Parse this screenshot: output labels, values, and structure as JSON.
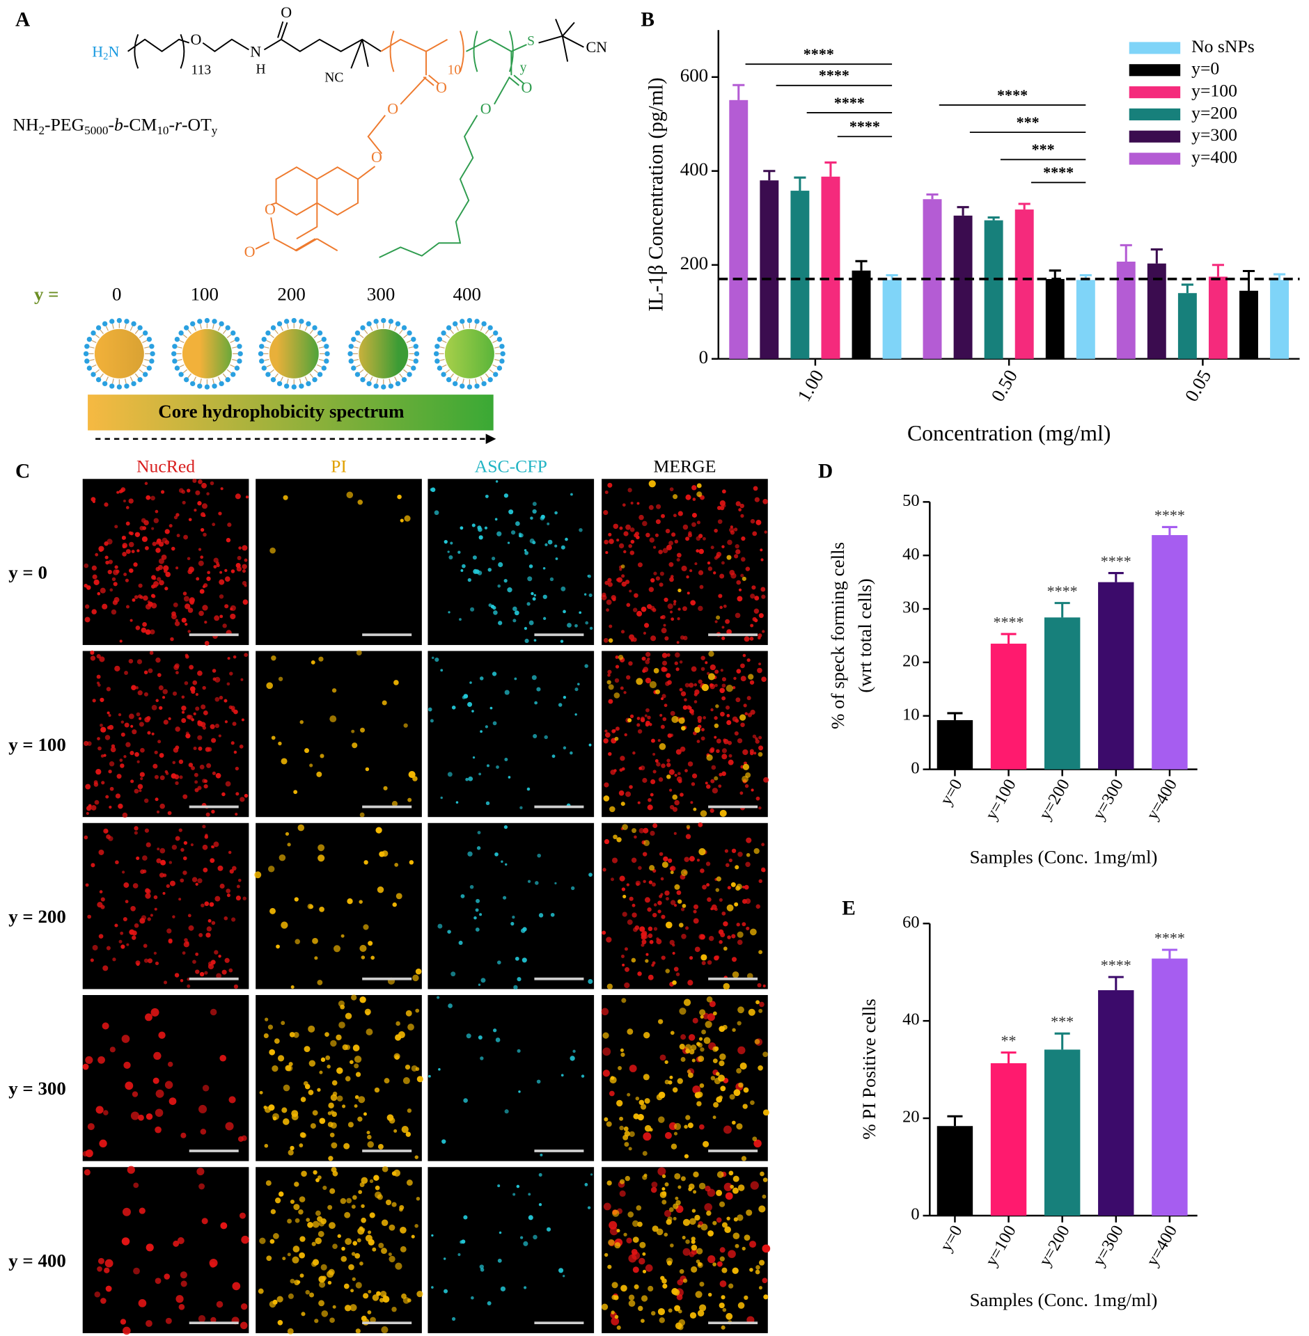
{
  "panel_labels": [
    "A",
    "B",
    "C",
    "D",
    "E"
  ],
  "panel_a": {
    "amine": [
      "H",
      "2",
      "N"
    ],
    "atoms": [
      "113",
      "O",
      "N",
      "H",
      "O",
      "NC",
      "10",
      "y",
      "S",
      "CN",
      "O",
      "O",
      "O",
      "O",
      "O",
      "O",
      "O"
    ],
    "formula": [
      "NH",
      "2",
      "-PEG",
      "5000",
      "-",
      "b",
      "-CM",
      "10",
      "-",
      "r",
      "-OT",
      "y"
    ],
    "y_label": "y =",
    "y_values": [
      "0",
      "100",
      "200",
      "300",
      "400"
    ],
    "spectrum": "Core hydrophobicity spectrum"
  },
  "panel_c": {
    "columns": [
      "NucRed",
      "PI",
      "ASC-CFP",
      "MERGE"
    ],
    "rows": [
      "y = 0",
      "y = 100",
      "y = 200",
      "y = 300",
      "y = 400"
    ]
  },
  "chart_data": [
    {
      "type": "grouped-bar",
      "categories": [
        "1.00",
        "0.50",
        "0.05"
      ],
      "xlabel": "Concentration (mg/ml)",
      "ylabel": "IL-1β Concentration (pg/ml)",
      "ylim": [
        0,
        700
      ],
      "yticks": [
        0,
        200,
        400,
        600
      ],
      "reference_line": 170,
      "legend": "top-right",
      "series": [
        {
          "name": "No sNPs",
          "color": "#7fd4f8",
          "values": [
            168,
            168,
            168
          ],
          "errors": [
            10,
            10,
            12
          ]
        },
        {
          "name": "y=0",
          "color": "#000000",
          "values": [
            188,
            170,
            145
          ],
          "errors": [
            20,
            18,
            42
          ]
        },
        {
          "name": "y=100",
          "color": "#f52a7c",
          "values": [
            388,
            318,
            175
          ],
          "errors": [
            30,
            12,
            25
          ]
        },
        {
          "name": "y=200",
          "color": "#17807b",
          "values": [
            358,
            295,
            140
          ],
          "errors": [
            28,
            6,
            18
          ]
        },
        {
          "name": "y=300",
          "color": "#3b0c4f",
          "values": [
            380,
            305,
            203
          ],
          "errors": [
            20,
            18,
            30
          ]
        },
        {
          "name": "y=400",
          "color": "#b45cd4",
          "values": [
            551,
            340,
            207
          ],
          "errors": [
            32,
            10,
            35
          ]
        }
      ],
      "significance": [
        [
          "****",
          "****",
          "****",
          "****"
        ],
        [
          "****",
          "***",
          "***",
          "****"
        ]
      ]
    },
    {
      "type": "bar",
      "categories": [
        "y=0",
        "y=100",
        "y=200",
        "y=300",
        "y=400"
      ],
      "values": [
        9.2,
        23.5,
        28.4,
        35,
        43.8
      ],
      "errors": [
        1.3,
        1.8,
        2.7,
        1.7,
        1.5
      ],
      "colors": [
        "#000000",
        "#ff1a6e",
        "#17807b",
        "#3c0b6b",
        "#a65df0"
      ],
      "annotations": [
        null,
        "****",
        "****",
        "****",
        "****"
      ],
      "xlabel": "Samples (Conc. 1mg/ml)",
      "ylabel": [
        "% of speck forming cells",
        "(wrt total cells)"
      ],
      "ylim": [
        0,
        50
      ],
      "yticks": [
        0,
        10,
        20,
        30,
        40,
        50
      ]
    },
    {
      "type": "bar",
      "categories": [
        "y=0",
        "y=100",
        "y=200",
        "y=300",
        "y=400"
      ],
      "values": [
        18.4,
        31.3,
        34.1,
        46.3,
        52.8
      ],
      "errors": [
        2,
        2.2,
        3.3,
        2.7,
        1.8
      ],
      "colors": [
        "#000000",
        "#ff1a6e",
        "#17807b",
        "#3c0b6b",
        "#a65df0"
      ],
      "annotations": [
        null,
        "**",
        "***",
        "****",
        "****"
      ],
      "xlabel": "Samples (Conc. 1mg/ml)",
      "ylabel": "% PI Positive cells",
      "ylim": [
        0,
        60
      ],
      "yticks": [
        0,
        20,
        40,
        60
      ]
    }
  ]
}
